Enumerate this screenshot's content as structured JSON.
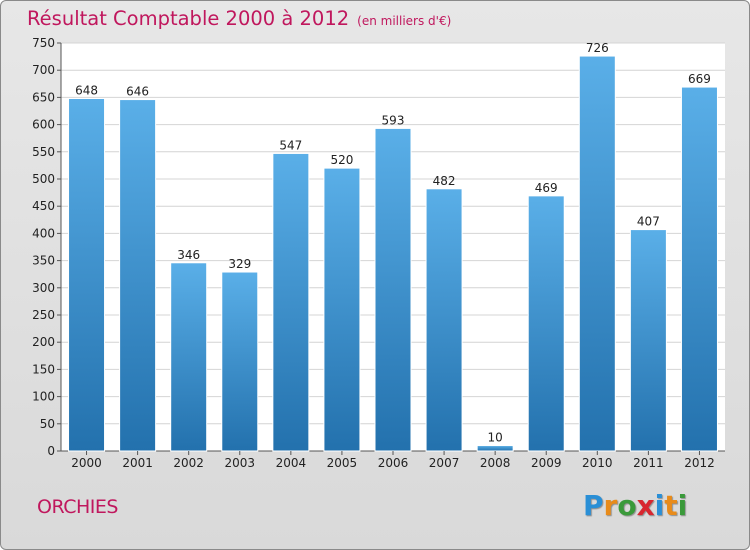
{
  "title": "Résultat Comptable 2000 à 2012",
  "subtitle": "(en milliers d'€)",
  "commune": "ORCHIES",
  "logo": {
    "letters": [
      "P",
      "r",
      "o",
      "x",
      "i",
      "t",
      "i"
    ],
    "colors": [
      "#2a8fd6",
      "#e88b1a",
      "#3a9a3a",
      "#d8262f",
      "#2a8fd6",
      "#e88b1a",
      "#3a9a3a"
    ]
  },
  "colors": {
    "bar_top": "#5aafe8",
    "bar_bottom": "#2371ad",
    "title": "#c0175d",
    "plot_bg": "#ffffff",
    "grid": "#d4d4d4"
  },
  "chart_data": {
    "type": "bar",
    "title": "Résultat Comptable 2000 à 2012",
    "subtitle": "(en milliers d'€)",
    "categories": [
      "2000",
      "2001",
      "2002",
      "2003",
      "2004",
      "2005",
      "2006",
      "2007",
      "2008",
      "2009",
      "2010",
      "2011",
      "2012"
    ],
    "values": [
      648,
      646,
      346,
      329,
      547,
      520,
      593,
      482,
      10,
      469,
      726,
      407,
      669
    ],
    "ylim": [
      0,
      750
    ],
    "ytick_step": 50,
    "grid": true,
    "data_labels": true
  }
}
